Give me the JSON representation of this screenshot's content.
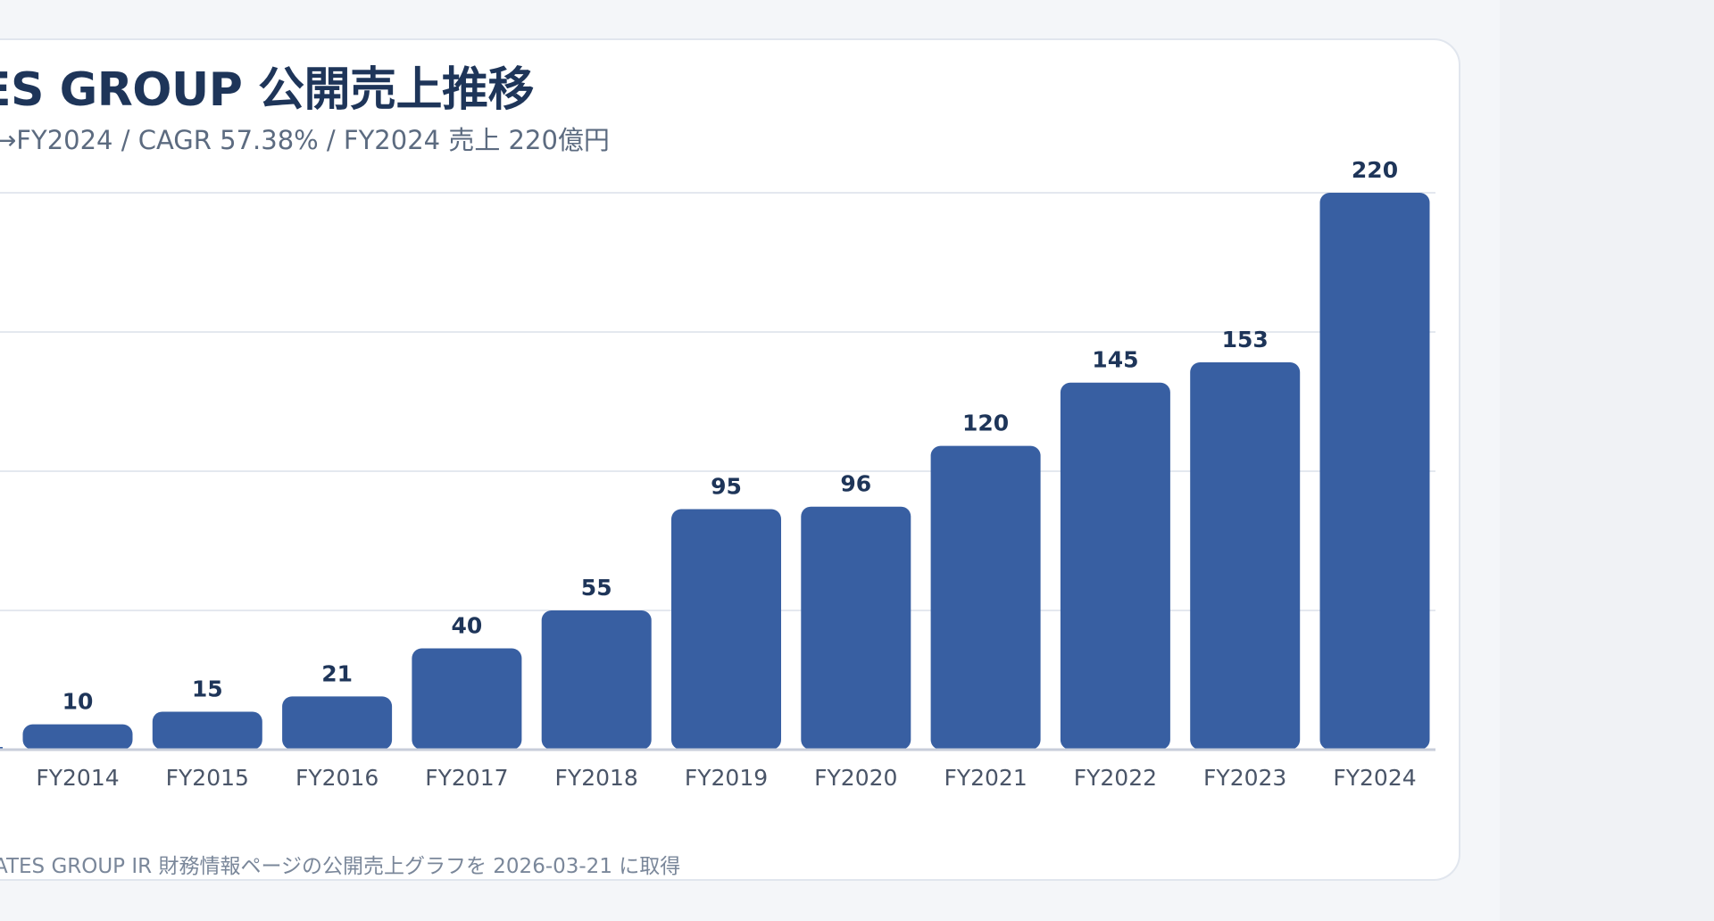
{
  "chart_data": {
    "type": "bar",
    "title": "ES GROUP 公開売上推移",
    "subtitle": "→FY2024 / CAGR 57.38% / FY2024 売上 220億円",
    "footnote": "ATES GROUP IR 財務情報ページの公開売上グラフを 2026-03-21 に取得",
    "categories": [
      "FY2014",
      "FY2015",
      "FY2016",
      "FY2017",
      "FY2018",
      "FY2019",
      "FY2020",
      "FY2021",
      "FY2022",
      "FY2023",
      "FY2024"
    ],
    "values": [
      10,
      15,
      21,
      40,
      55,
      95,
      96,
      120,
      145,
      153,
      220
    ],
    "ylim": [
      0,
      220
    ],
    "grid": true,
    "colors": {
      "bar": "#385fa2",
      "grid": "#e4e8ef",
      "axis": "#c8ceda",
      "label": "#1e3559",
      "tick": "#4a5568"
    }
  }
}
